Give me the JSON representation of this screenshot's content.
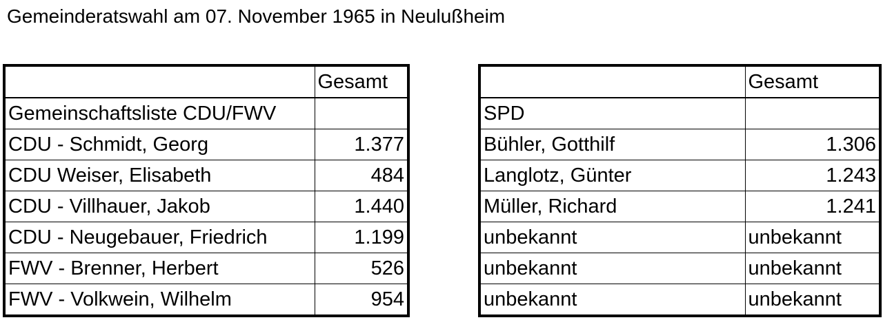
{
  "title": "Gemeinderatswahl am 07. November 1965 in Neulußheim",
  "left_table": {
    "header": {
      "name": "",
      "total": "Gesamt"
    },
    "list_name": "Gemeinschaftsliste CDU/FWV",
    "rows": [
      {
        "name": "CDU - Schmidt, Georg",
        "total": "1.377"
      },
      {
        "name": "CDU Weiser, Elisabeth",
        "total": "484"
      },
      {
        "name": "CDU - Villhauer, Jakob",
        "total": "1.440"
      },
      {
        "name": "CDU - Neugebauer, Friedrich",
        "total": "1.199"
      },
      {
        "name": "FWV - Brenner, Herbert",
        "total": "526"
      },
      {
        "name": "FWV - Volkwein, Wilhelm",
        "total": "954"
      }
    ]
  },
  "right_table": {
    "header": {
      "name": "",
      "total": "Gesamt"
    },
    "list_name": "SPD",
    "rows": [
      {
        "name": "Bühler, Gotthilf",
        "total": "1.306"
      },
      {
        "name": "Langlotz, Günter",
        "total": "1.243"
      },
      {
        "name": "Müller, Richard",
        "total": "1.241"
      },
      {
        "name": "unbekannt",
        "total": "unbekannt"
      },
      {
        "name": "unbekannt",
        "total": "unbekannt"
      },
      {
        "name": "unbekannt",
        "total": "unbekannt"
      }
    ]
  }
}
